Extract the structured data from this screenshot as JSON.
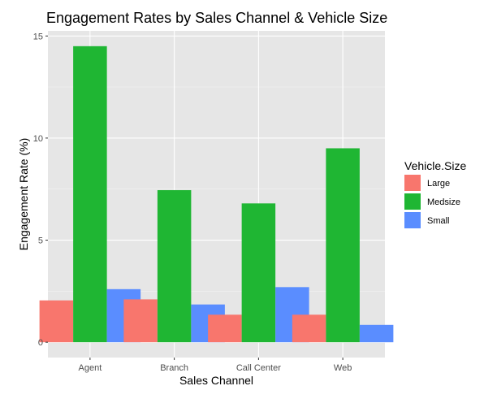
{
  "chart_data": {
    "type": "bar",
    "title": "Engagement Rates by Sales Channel & Vehicle Size",
    "xlabel": "Sales Channel",
    "ylabel": "Engagement Rate (%)",
    "categories": [
      "Agent",
      "Branch",
      "Call Center",
      "Web"
    ],
    "series": [
      {
        "name": "Large",
        "color": "#F8766D",
        "values": [
          2.05,
          2.1,
          1.35,
          1.35
        ]
      },
      {
        "name": "Medsize",
        "color": "#1FB633",
        "values": [
          14.5,
          7.45,
          6.8,
          9.5
        ]
      },
      {
        "name": "Small",
        "color": "#5A8DFF",
        "values": [
          2.6,
          1.85,
          2.7,
          0.85
        ]
      }
    ],
    "ylim": [
      -0.75,
      15.25
    ],
    "yticks": [
      0,
      5,
      10,
      15
    ],
    "grid": true,
    "legend": {
      "title": "Vehicle.Size",
      "position": "right"
    },
    "panel_background": "#E6E6E6"
  }
}
